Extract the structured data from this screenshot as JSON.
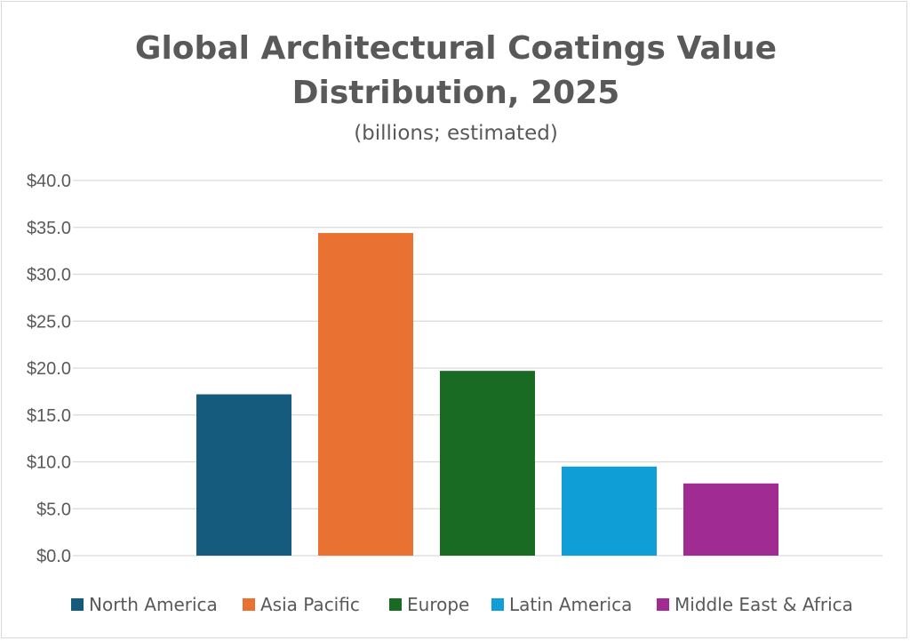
{
  "chart_data": {
    "type": "bar",
    "title": "Global Architectural Coatings Value Distribution, 2025",
    "title_lines": [
      "Global Architectural Coatings Value",
      "Distribution, 2025"
    ],
    "subtitle": "(billions; estimated)",
    "xlabel": "",
    "ylabel": "",
    "ylim": [
      0,
      40
    ],
    "y_ticks": [
      0,
      5,
      10,
      15,
      20,
      25,
      30,
      35,
      40
    ],
    "y_tick_labels": [
      "$0.0",
      "$5.0",
      "$10.0",
      "$15.0",
      "$20.0",
      "$25.0",
      "$30.0",
      "$35.0",
      "$40.0"
    ],
    "grid": true,
    "legend_position": "bottom",
    "series": [
      {
        "name": "North America",
        "value": 17.2,
        "color": "#145b7d"
      },
      {
        "name": "Asia Pacific",
        "value": 34.4,
        "color": "#e97132"
      },
      {
        "name": "Europe",
        "value": 19.7,
        "color": "#196b24"
      },
      {
        "name": "Latin America",
        "value": 9.5,
        "color": "#0f9ed5"
      },
      {
        "name": "Middle East & Africa",
        "value": 7.7,
        "color": "#a02b93"
      }
    ]
  }
}
